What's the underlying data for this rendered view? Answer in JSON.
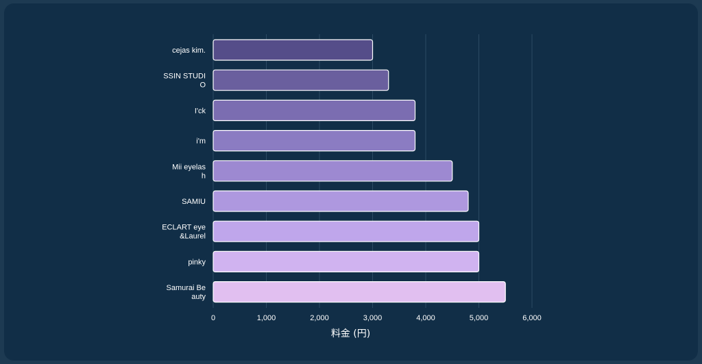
{
  "chart_data": {
    "type": "bar",
    "orientation": "horizontal",
    "categories": [
      [
        "cejas kim."
      ],
      [
        "SSIN STUDI",
        "O"
      ],
      [
        "I'ck"
      ],
      [
        "i'm"
      ],
      [
        "Mii eyelas",
        "h"
      ],
      [
        "SAMIU"
      ],
      [
        "ECLART eye",
        "&Laurel"
      ],
      [
        "pinky"
      ],
      [
        "Samurai Be",
        "auty"
      ]
    ],
    "values": [
      3000,
      3300,
      3800,
      3800,
      4500,
      4800,
      5000,
      5000,
      5500
    ],
    "xlabel": "料金 (円)",
    "ylabel": "",
    "xlim": [
      0,
      6000
    ],
    "xticks": [
      0,
      1000,
      2000,
      3000,
      4000,
      5000,
      6000
    ],
    "xtick_labels": [
      "0",
      "1,000",
      "2,000",
      "3,000",
      "4,000",
      "5,000",
      "6,000"
    ],
    "grid": "vertical",
    "legend": "none",
    "colors": [
      "#554d89",
      "#6a5f9e",
      "#7b6db1",
      "#8b7cc2",
      "#9d89d1",
      "#ae98df",
      "#bfa6eb",
      "#d0b3f0",
      "#e1bff0"
    ],
    "bar_border_color": "#ffffff",
    "background_color": "#112e47",
    "grid_color": "#2c4a63"
  }
}
